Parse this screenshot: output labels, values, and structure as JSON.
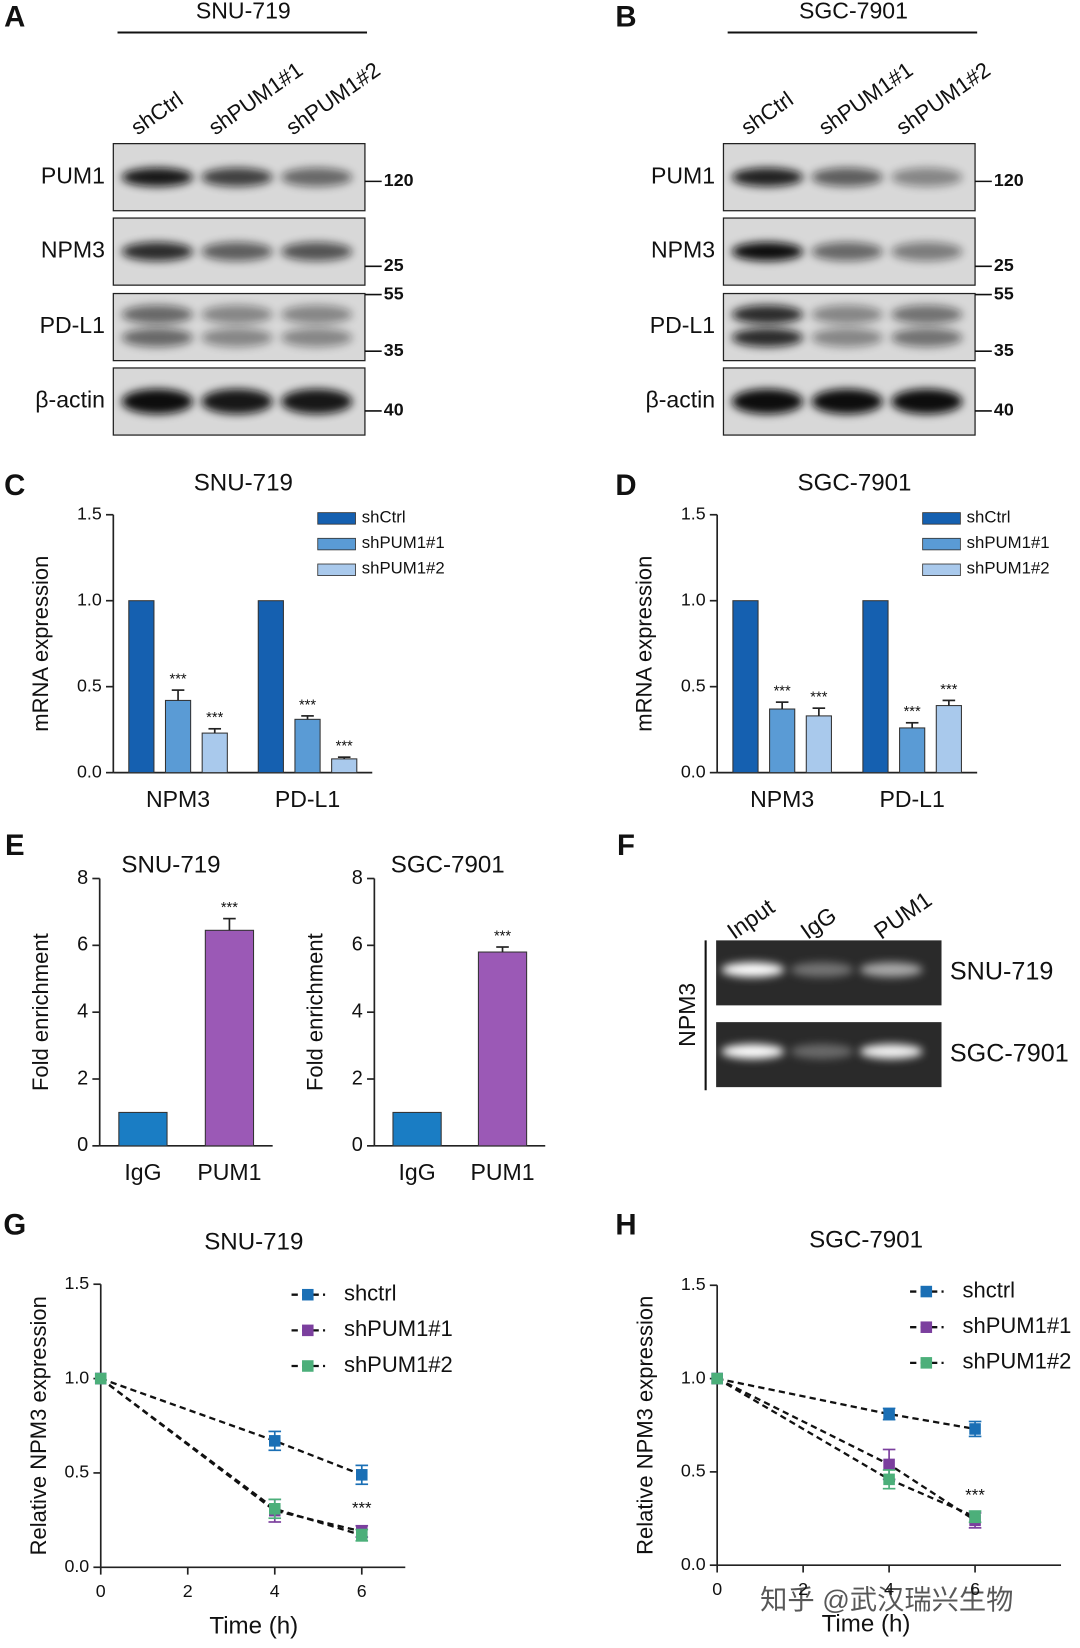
{
  "panels": [
    "A",
    "B",
    "C",
    "D",
    "E",
    "F",
    "G",
    "H"
  ],
  "blots": [
    {
      "title": "SNU-719",
      "lanes": [
        "shCtrl",
        "shPUM1#1",
        "shPUM1#2"
      ],
      "rows": [
        "PUM1",
        "NPM3",
        "PD-L1",
        "β-actin"
      ],
      "markers": [
        120,
        25,
        55,
        35,
        40
      ]
    },
    {
      "title": "SGC-7901",
      "lanes": [
        "shCtrl",
        "shPUM1#1",
        "shPUM1#2"
      ],
      "rows": [
        "PUM1",
        "NPM3",
        "PD-L1",
        "β-actin"
      ],
      "markers": [
        120,
        25,
        55,
        35,
        40
      ]
    }
  ],
  "gel": {
    "lanes": [
      "Input",
      "IgG",
      "PUM1"
    ],
    "rows": [
      "SNU-719",
      "SGC-7901"
    ],
    "side_label": "NPM3"
  },
  "watermark": "知乎 @武汉瑞兴生物",
  "chart_data": [
    {
      "type": "bar",
      "title": "SNU-719",
      "ylabel": "mRNA expression",
      "categories": [
        "NPM3",
        "PD-L1"
      ],
      "series": [
        {
          "name": "shCtrl",
          "color": "#1560b0",
          "values": [
            1,
            1
          ],
          "errors": [
            0,
            0
          ],
          "significance": [
            null,
            null
          ]
        },
        {
          "name": "shPUM1#1",
          "color": "#5a9bd5",
          "values": [
            0.42,
            0.31
          ],
          "errors": [
            0.06,
            0.02
          ],
          "significance": [
            "***",
            "***"
          ]
        },
        {
          "name": "shPUM1#2",
          "color": "#a9c9ec",
          "values": [
            0.23,
            0.08
          ],
          "errors": [
            0.025,
            0.01
          ],
          "significance": [
            "***",
            "***"
          ]
        }
      ],
      "ylim": [
        0,
        1.5
      ],
      "yticks": [
        {
          "value": 0,
          "label": "0.0"
        },
        0.5,
        {
          "value": 1,
          "label": "1.0"
        },
        1.5
      ]
    },
    {
      "type": "bar",
      "title": "SGC-7901",
      "ylabel": "mRNA expression",
      "categories": [
        "NPM3",
        "PD-L1"
      ],
      "series": [
        {
          "name": "shCtrl",
          "color": "#1560b0",
          "values": [
            1,
            1
          ],
          "errors": [
            0,
            0
          ],
          "significance": [
            null,
            null
          ]
        },
        {
          "name": "shPUM1#1",
          "color": "#5a9bd5",
          "values": [
            0.37,
            0.26
          ],
          "errors": [
            0.04,
            0.03
          ],
          "significance": [
            "***",
            "***"
          ]
        },
        {
          "name": "shPUM1#2",
          "color": "#a9c9ec",
          "values": [
            0.33,
            0.39
          ],
          "errors": [
            0.045,
            0.03
          ],
          "significance": [
            "***",
            "***"
          ]
        }
      ],
      "ylim": [
        0,
        1.5
      ],
      "yticks": [
        {
          "value": 0,
          "label": "0.0"
        },
        0.5,
        {
          "value": 1,
          "label": "1.0"
        },
        1.5
      ]
    },
    {
      "type": "bar",
      "title": "SNU-719",
      "ylabel": "Fold enrichment",
      "categories": [
        "IgG",
        "PUM1"
      ],
      "values": [
        1,
        6.45
      ],
      "errors": [
        0,
        0.35
      ],
      "colors": [
        "#1a7dc4",
        "#9b59b6"
      ],
      "significance": [
        null,
        "***"
      ],
      "ylim": [
        0,
        8
      ],
      "yticks": [
        0,
        2,
        4,
        6,
        8
      ]
    },
    {
      "type": "bar",
      "title": "SGC-7901",
      "ylabel": "Fold enrichment",
      "categories": [
        "IgG",
        "PUM1"
      ],
      "values": [
        1,
        5.8
      ],
      "errors": [
        0,
        0.15
      ],
      "colors": [
        "#1a7dc4",
        "#9b59b6"
      ],
      "significance": [
        null,
        "***"
      ],
      "ylim": [
        0,
        8
      ],
      "yticks": [
        0,
        2,
        4,
        6,
        8
      ]
    },
    {
      "type": "line",
      "title": "SNU-719",
      "xlabel": "Time (h)",
      "ylabel": "Relative NPM3 expression",
      "x": [
        0,
        4,
        6
      ],
      "series": [
        {
          "name": "shctrl",
          "color": "#1a6fb5",
          "values": [
            1,
            0.67,
            0.49
          ],
          "errors": [
            0,
            0.05,
            0.05
          ],
          "significance": [
            null,
            null,
            null
          ]
        },
        {
          "name": "shPUM1#1",
          "color": "#7b3f9e",
          "values": [
            1,
            0.3,
            0.19
          ],
          "errors": [
            0,
            0.06,
            0.03
          ],
          "significance": [
            null,
            null,
            "***"
          ]
        },
        {
          "name": "shPUM1#2",
          "color": "#4caf7a",
          "values": [
            1,
            0.31,
            0.17
          ],
          "errors": [
            0,
            0.05,
            0.03
          ],
          "significance": [
            null,
            null,
            null
          ]
        }
      ],
      "xlim": [
        0,
        7
      ],
      "xticks": [
        0,
        2,
        4,
        6
      ],
      "ylim": [
        0,
        1.5
      ],
      "yticks": [
        {
          "value": 0,
          "label": "0.0"
        },
        0.5,
        {
          "value": 1,
          "label": "1.0"
        },
        1.5
      ]
    },
    {
      "type": "line",
      "title": "SGC-7901",
      "xlabel": "Time (h)",
      "ylabel": "Relative NPM3 expression",
      "x": [
        0,
        4,
        6
      ],
      "series": [
        {
          "name": "shctrl",
          "color": "#1a6fb5",
          "values": [
            1,
            0.81,
            0.73
          ],
          "errors": [
            0,
            0.03,
            0.04
          ],
          "significance": [
            null,
            null,
            null
          ]
        },
        {
          "name": "shPUM1#1",
          "color": "#7b3f9e",
          "values": [
            1,
            0.54,
            0.24
          ],
          "errors": [
            0,
            0.08,
            0.04
          ],
          "significance": [
            null,
            null,
            "***"
          ]
        },
        {
          "name": "shPUM1#2",
          "color": "#4caf7a",
          "values": [
            1,
            0.46,
            0.26
          ],
          "errors": [
            0,
            0.05,
            0.03
          ],
          "significance": [
            null,
            null,
            null
          ]
        }
      ],
      "xlim": [
        0,
        8
      ],
      "xticks": [
        0,
        2,
        4,
        6
      ],
      "ylim": [
        0,
        1.5
      ],
      "yticks": [
        {
          "value": 0,
          "label": "0.0"
        },
        0.5,
        {
          "value": 1,
          "label": "1.0"
        },
        1.5
      ]
    }
  ]
}
